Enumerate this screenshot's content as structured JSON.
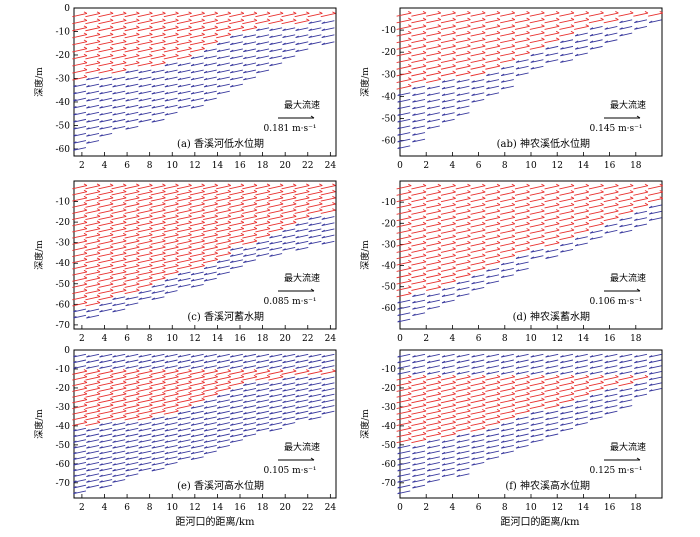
{
  "figure": {
    "x_label": "距河口的距离/km",
    "legend_title": "最大流速"
  },
  "chart_data": [
    {
      "type": "quiver",
      "title": "(a) 香溪河低水位期",
      "xlabel": "",
      "ylabel": "深度/m",
      "xlim": [
        1.3,
        24.5
      ],
      "ylim": [
        -63,
        0
      ],
      "xticks": [
        2,
        4,
        6,
        8,
        10,
        12,
        14,
        16,
        18,
        20,
        22,
        24
      ],
      "yticks": [
        0,
        -10,
        -20,
        -30,
        -40,
        -50,
        -60
      ],
      "max_speed_label": "0.181 m·s⁻¹",
      "colors": {
        "upper": "#e8312f",
        "lower": "#3a3a9e"
      },
      "x_range": [
        1.8,
        23.8
      ],
      "n_columns": 20,
      "depth_levels": [
        -3,
        -6,
        -9,
        -12,
        -15,
        -18,
        -21,
        -24,
        -27,
        -30,
        -33,
        -36,
        -39,
        -42,
        -45,
        -48,
        -51,
        -54,
        -57,
        -60
      ],
      "bottom_profile": {
        "x": [
          1.8,
          5,
          13,
          18,
          23.8
        ],
        "depth": [
          -61,
          -54,
          -42,
          -30,
          -15
        ]
      },
      "red_layer_bottom": {
        "x": [
          1.8,
          8,
          13,
          16,
          23.8
        ],
        "depth": [
          -30,
          -25,
          -19,
          -10,
          -5
        ]
      }
    },
    {
      "type": "quiver",
      "title": "(ab) 神农溪低水位期",
      "xlabel": "",
      "ylabel": "深度/m",
      "xlim": [
        0,
        20
      ],
      "ylim": [
        -67,
        0
      ],
      "xticks": [
        0,
        2,
        4,
        6,
        8,
        10,
        12,
        14,
        16,
        18
      ],
      "yticks": [
        -10,
        -20,
        -30,
        -40,
        -50,
        -60
      ],
      "max_speed_label": "0.145 m·s⁻¹",
      "colors": {
        "upper": "#e8312f",
        "lower": "#3a3a9e"
      },
      "x_range": [
        0.3,
        19.5
      ],
      "n_columns": 18,
      "depth_levels": [
        -3,
        -6,
        -9,
        -12,
        -15,
        -18,
        -21,
        -24,
        -27,
        -30,
        -33,
        -36,
        -39,
        -42,
        -45,
        -48,
        -51,
        -54,
        -57,
        -60,
        -63
      ],
      "bottom_profile": {
        "x": [
          0.3,
          5,
          10,
          15,
          19.5
        ],
        "depth": [
          -64,
          -48,
          -30,
          -20,
          -8
        ]
      },
      "red_layer_bottom": {
        "x": [
          0.3,
          6,
          10,
          15,
          19.5
        ],
        "depth": [
          -36,
          -30,
          -20,
          -8,
          -3
        ]
      }
    },
    {
      "type": "quiver",
      "title": "(c) 香溪河蓄水期",
      "xlabel": "",
      "ylabel": "深度/m",
      "xlim": [
        1.3,
        24.5
      ],
      "ylim": [
        -72,
        0
      ],
      "xticks": [
        2,
        4,
        6,
        8,
        10,
        12,
        14,
        16,
        18,
        20,
        22,
        24
      ],
      "yticks": [
        -10,
        -20,
        -30,
        -40,
        -50,
        -60,
        -70
      ],
      "max_speed_label": "0.085 m·s⁻¹",
      "colors": {
        "upper": "#e8312f",
        "lower": "#3a3a9e"
      },
      "x_range": [
        1.8,
        23.8
      ],
      "n_columns": 20,
      "depth_levels": [
        -3,
        -6,
        -9,
        -12,
        -15,
        -18,
        -21,
        -24,
        -27,
        -30,
        -33,
        -36,
        -39,
        -42,
        -45,
        -48,
        -51,
        -54,
        -57,
        -60,
        -63,
        -66,
        -69
      ],
      "bottom_profile": {
        "x": [
          1.8,
          6,
          13,
          18,
          23.8
        ],
        "depth": [
          -68,
          -62,
          -50,
          -38,
          -30
        ]
      },
      "red_layer_bottom": {
        "x": [
          1.8,
          6,
          12,
          16,
          23.8
        ],
        "depth": [
          -62,
          -55,
          -43,
          -32,
          -15
        ]
      }
    },
    {
      "type": "quiver",
      "title": "(d) 神农溪蓄水期",
      "xlabel": "",
      "ylabel": "深度/m",
      "xlim": [
        0,
        20
      ],
      "ylim": [
        -70,
        0
      ],
      "xticks": [
        0,
        2,
        4,
        6,
        8,
        10,
        12,
        14,
        16,
        18
      ],
      "yticks": [
        -10,
        -20,
        -30,
        -40,
        -50,
        -60
      ],
      "max_speed_label": "0.106 m·s⁻¹",
      "colors": {
        "upper": "#e8312f",
        "lower": "#3a3a9e"
      },
      "x_range": [
        0.3,
        19.5
      ],
      "n_columns": 18,
      "depth_levels": [
        -3,
        -6,
        -9,
        -12,
        -15,
        -18,
        -21,
        -24,
        -27,
        -30,
        -33,
        -36,
        -39,
        -42,
        -45,
        -48,
        -51,
        -54,
        -57,
        -60,
        -63,
        -66
      ],
      "bottom_profile": {
        "x": [
          0.3,
          5,
          10,
          15,
          19.5
        ],
        "depth": [
          -66,
          -56,
          -40,
          -28,
          -20
        ]
      },
      "red_layer_bottom": {
        "x": [
          0.3,
          5,
          10,
          15,
          19.5
        ],
        "depth": [
          -56,
          -46,
          -34,
          -22,
          -10
        ]
      }
    },
    {
      "type": "quiver",
      "title": "(e) 香溪河高水位期",
      "xlabel": "距河口的距离/km",
      "ylabel": "深度/m",
      "xlim": [
        1.3,
        24.5
      ],
      "ylim": [
        -78,
        0
      ],
      "xticks": [
        2,
        4,
        6,
        8,
        10,
        12,
        14,
        16,
        18,
        20,
        22,
        24
      ],
      "yticks": [
        0,
        -10,
        -20,
        -30,
        -40,
        -50,
        -60,
        -70
      ],
      "max_speed_label": "0.105 m·s⁻¹",
      "colors": {
        "upper": "#e8312f",
        "lower": "#3a3a9e"
      },
      "x_range": [
        1.8,
        23.8
      ],
      "n_columns": 20,
      "depth_levels": [
        -3,
        -6,
        -9,
        -12,
        -15,
        -18,
        -21,
        -24,
        -27,
        -30,
        -33,
        -36,
        -39,
        -42,
        -45,
        -48,
        -51,
        -54,
        -57,
        -60,
        -63,
        -66,
        -69,
        -72,
        -75
      ],
      "bottom_profile": {
        "x": [
          1.8,
          6,
          13,
          18,
          23.8
        ],
        "depth": [
          -77,
          -68,
          -56,
          -45,
          -35
        ]
      },
      "red_layer_top": {
        "x": [
          1.8,
          12,
          23.8
        ],
        "depth": [
          -12,
          -12,
          -12
        ]
      },
      "red_layer_bottom": {
        "x": [
          1.8,
          8,
          12,
          16,
          23.8
        ],
        "depth": [
          -40,
          -36,
          -30,
          -18,
          -12
        ]
      }
    },
    {
      "type": "quiver",
      "title": "(f) 神农溪高水位期",
      "xlabel": "距河口的距离/km",
      "ylabel": "深度/m",
      "xlim": [
        0,
        20
      ],
      "ylim": [
        -78,
        0
      ],
      "xticks": [
        0,
        2,
        4,
        6,
        8,
        10,
        12,
        14,
        16,
        18
      ],
      "yticks": [
        -10,
        -20,
        -30,
        -40,
        -50,
        -60,
        -70
      ],
      "max_speed_label": "0.125 m·s⁻¹",
      "colors": {
        "upper": "#e8312f",
        "lower": "#3a3a9e"
      },
      "x_range": [
        0.3,
        19.5
      ],
      "n_columns": 18,
      "depth_levels": [
        -3,
        -6,
        -9,
        -12,
        -15,
        -18,
        -21,
        -24,
        -27,
        -30,
        -33,
        -36,
        -39,
        -42,
        -45,
        -48,
        -51,
        -54,
        -57,
        -60,
        -63,
        -66,
        -69,
        -72,
        -75
      ],
      "bottom_profile": {
        "x": [
          0.3,
          5,
          10,
          15,
          19.5
        ],
        "depth": [
          -76,
          -66,
          -50,
          -38,
          -22
        ]
      },
      "red_layer_top": {
        "x": [
          0.3,
          10,
          19.5
        ],
        "depth": [
          -15,
          -15,
          -15
        ]
      },
      "red_layer_bottom": {
        "x": [
          0.3,
          5,
          10,
          15,
          19.5
        ],
        "depth": [
          -50,
          -44,
          -34,
          -22,
          -14
        ]
      }
    }
  ]
}
